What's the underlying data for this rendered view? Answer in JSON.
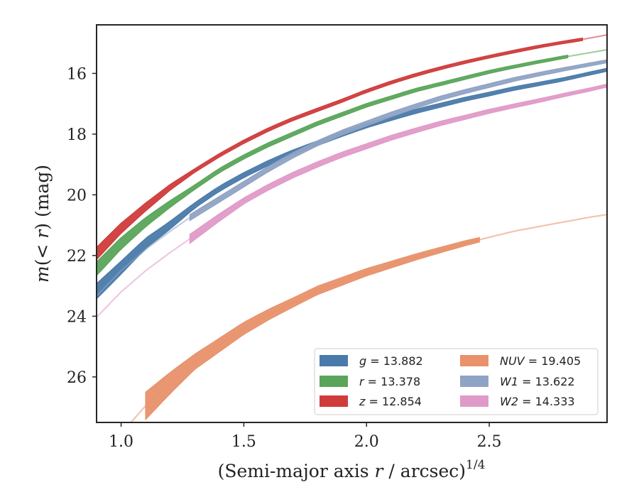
{
  "chart_data": {
    "type": "line",
    "xlabel_main": "(Semi-major axis ",
    "xlabel_var": "r",
    "xlabel_tail": " / arcsec)",
    "xlabel_exp": "1/4",
    "ylabel_pre": "m",
    "ylabel_mid": "(< ",
    "ylabel_var": "r",
    "ylabel_post": ") (mag)",
    "xlim": [
      0.9,
      2.98
    ],
    "ylim": [
      27.5,
      14.4
    ],
    "y_inverted": true,
    "xticks": [
      1.0,
      1.5,
      2.0,
      2.5
    ],
    "xtick_labels": [
      "1.0",
      "1.5",
      "2.0",
      "2.5"
    ],
    "yticks": [
      16,
      18,
      20,
      22,
      24,
      26
    ],
    "ytick_labels": [
      "16",
      "18",
      "20",
      "22",
      "24",
      "26"
    ],
    "grid": false,
    "legend_location": "lower right",
    "legend_columns": 2,
    "series": [
      {
        "name": "g = 13.882",
        "band": "g",
        "total": "13.882",
        "color": "#4a7aaa",
        "solid_range": [
          0.9,
          2.98
        ],
        "faint_range": [
          0.9,
          0.9
        ],
        "points": [
          [
            0.91,
            23.1
          ],
          [
            1.0,
            22.4
          ],
          [
            1.1,
            21.6
          ],
          [
            1.2,
            21.0
          ],
          [
            1.3,
            20.35
          ],
          [
            1.4,
            19.8
          ],
          [
            1.5,
            19.35
          ],
          [
            1.6,
            18.95
          ],
          [
            1.7,
            18.6
          ],
          [
            1.8,
            18.3
          ],
          [
            1.9,
            18.0
          ],
          [
            2.0,
            17.72
          ],
          [
            2.1,
            17.48
          ],
          [
            2.2,
            17.25
          ],
          [
            2.3,
            17.05
          ],
          [
            2.4,
            16.85
          ],
          [
            2.5,
            16.68
          ],
          [
            2.6,
            16.5
          ],
          [
            2.7,
            16.35
          ],
          [
            2.8,
            16.2
          ],
          [
            2.9,
            16.02
          ],
          [
            2.98,
            15.88
          ]
        ],
        "band_width": [
          [
            0.91,
            0.5
          ],
          [
            1.3,
            0.18
          ],
          [
            2.98,
            0.1
          ]
        ]
      },
      {
        "name": "r = 13.378",
        "band": "r",
        "total": "13.378",
        "color": "#5aa55a",
        "solid_range": [
          0.9,
          2.82
        ],
        "faint_range": [
          2.82,
          2.98
        ],
        "points": [
          [
            0.91,
            22.35
          ],
          [
            1.0,
            21.6
          ],
          [
            1.1,
            20.9
          ],
          [
            1.2,
            20.3
          ],
          [
            1.3,
            19.75
          ],
          [
            1.4,
            19.2
          ],
          [
            1.5,
            18.75
          ],
          [
            1.6,
            18.35
          ],
          [
            1.7,
            18.0
          ],
          [
            1.8,
            17.65
          ],
          [
            1.9,
            17.35
          ],
          [
            2.0,
            17.05
          ],
          [
            2.1,
            16.8
          ],
          [
            2.2,
            16.55
          ],
          [
            2.3,
            16.35
          ],
          [
            2.4,
            16.15
          ],
          [
            2.5,
            15.95
          ],
          [
            2.6,
            15.78
          ],
          [
            2.7,
            15.62
          ],
          [
            2.8,
            15.47
          ],
          [
            2.9,
            15.33
          ],
          [
            2.98,
            15.22
          ]
        ],
        "band_width": [
          [
            0.91,
            0.45
          ],
          [
            1.3,
            0.15
          ],
          [
            2.98,
            0.08
          ]
        ]
      },
      {
        "name": "z = 12.854",
        "band": "z",
        "total": "12.854",
        "color": "#d03b3b",
        "solid_range": [
          0.9,
          2.88
        ],
        "faint_range": [
          2.88,
          2.98
        ],
        "points": [
          [
            0.91,
            21.85
          ],
          [
            1.0,
            21.1
          ],
          [
            1.1,
            20.4
          ],
          [
            1.2,
            19.75
          ],
          [
            1.3,
            19.2
          ],
          [
            1.4,
            18.7
          ],
          [
            1.5,
            18.25
          ],
          [
            1.6,
            17.85
          ],
          [
            1.7,
            17.5
          ],
          [
            1.8,
            17.2
          ],
          [
            1.9,
            16.9
          ],
          [
            2.0,
            16.58
          ],
          [
            2.1,
            16.3
          ],
          [
            2.2,
            16.05
          ],
          [
            2.3,
            15.83
          ],
          [
            2.4,
            15.63
          ],
          [
            2.5,
            15.45
          ],
          [
            2.6,
            15.28
          ],
          [
            2.7,
            15.12
          ],
          [
            2.8,
            14.98
          ],
          [
            2.9,
            14.85
          ],
          [
            2.98,
            14.73
          ]
        ],
        "band_width": [
          [
            0.91,
            0.4
          ],
          [
            1.3,
            0.12
          ],
          [
            2.98,
            0.08
          ]
        ]
      },
      {
        "name": "NUV = 19.405",
        "band": "NUV",
        "total": "19.405",
        "color": "#e8916a",
        "solid_range": [
          1.1,
          2.46
        ],
        "faint_range": [
          1.0,
          2.98
        ],
        "points": [
          [
            1.04,
            27.5
          ],
          [
            1.1,
            26.95
          ],
          [
            1.2,
            26.2
          ],
          [
            1.3,
            25.5
          ],
          [
            1.4,
            24.95
          ],
          [
            1.5,
            24.4
          ],
          [
            1.6,
            23.95
          ],
          [
            1.7,
            23.55
          ],
          [
            1.8,
            23.15
          ],
          [
            1.9,
            22.85
          ],
          [
            2.0,
            22.55
          ],
          [
            2.1,
            22.3
          ],
          [
            2.2,
            22.05
          ],
          [
            2.3,
            21.82
          ],
          [
            2.4,
            21.6
          ],
          [
            2.5,
            21.4
          ],
          [
            2.6,
            21.2
          ],
          [
            2.7,
            21.05
          ],
          [
            2.8,
            20.9
          ],
          [
            2.9,
            20.75
          ],
          [
            2.98,
            20.65
          ]
        ],
        "band_width": [
          [
            1.1,
            0.9
          ],
          [
            1.3,
            0.5
          ],
          [
            1.7,
            0.3
          ],
          [
            2.46,
            0.15
          ],
          [
            2.98,
            0.1
          ]
        ]
      },
      {
        "name": "W1 = 13.622",
        "band": "W1",
        "total": "13.622",
        "color": "#8fa3c4",
        "solid_range": [
          1.28,
          2.98
        ],
        "faint_range": [
          0.9,
          1.28
        ],
        "points": [
          [
            0.91,
            23.25
          ],
          [
            1.0,
            22.5
          ],
          [
            1.1,
            21.8
          ],
          [
            1.2,
            21.2
          ],
          [
            1.28,
            20.75
          ],
          [
            1.4,
            20.15
          ],
          [
            1.5,
            19.65
          ],
          [
            1.6,
            19.15
          ],
          [
            1.7,
            18.7
          ],
          [
            1.8,
            18.3
          ],
          [
            1.9,
            17.95
          ],
          [
            2.0,
            17.65
          ],
          [
            2.1,
            17.35
          ],
          [
            2.2,
            17.08
          ],
          [
            2.3,
            16.82
          ],
          [
            2.4,
            16.6
          ],
          [
            2.5,
            16.4
          ],
          [
            2.6,
            16.2
          ],
          [
            2.7,
            16.03
          ],
          [
            2.8,
            15.87
          ],
          [
            2.9,
            15.72
          ],
          [
            2.98,
            15.6
          ]
        ],
        "band_width": [
          [
            1.28,
            0.2
          ],
          [
            2.98,
            0.1
          ]
        ]
      },
      {
        "name": "W2 = 14.333",
        "band": "W2",
        "total": "14.333",
        "color": "#e09ac8",
        "solid_range": [
          1.28,
          2.98
        ],
        "faint_range": [
          0.9,
          1.28
        ],
        "points": [
          [
            0.91,
            23.95
          ],
          [
            1.0,
            23.2
          ],
          [
            1.1,
            22.5
          ],
          [
            1.2,
            21.9
          ],
          [
            1.28,
            21.45
          ],
          [
            1.4,
            20.75
          ],
          [
            1.5,
            20.2
          ],
          [
            1.6,
            19.75
          ],
          [
            1.7,
            19.35
          ],
          [
            1.8,
            19.0
          ],
          [
            1.9,
            18.68
          ],
          [
            2.0,
            18.4
          ],
          [
            2.1,
            18.12
          ],
          [
            2.2,
            17.88
          ],
          [
            2.3,
            17.65
          ],
          [
            2.4,
            17.45
          ],
          [
            2.5,
            17.25
          ],
          [
            2.6,
            17.07
          ],
          [
            2.7,
            16.9
          ],
          [
            2.8,
            16.72
          ],
          [
            2.9,
            16.55
          ],
          [
            2.98,
            16.4
          ]
        ],
        "band_width": [
          [
            1.28,
            0.3
          ],
          [
            1.5,
            0.2
          ],
          [
            2.98,
            0.1
          ]
        ]
      }
    ],
    "legend_rows": [
      [
        0,
        3
      ],
      [
        1,
        4
      ],
      [
        2,
        5
      ]
    ]
  }
}
